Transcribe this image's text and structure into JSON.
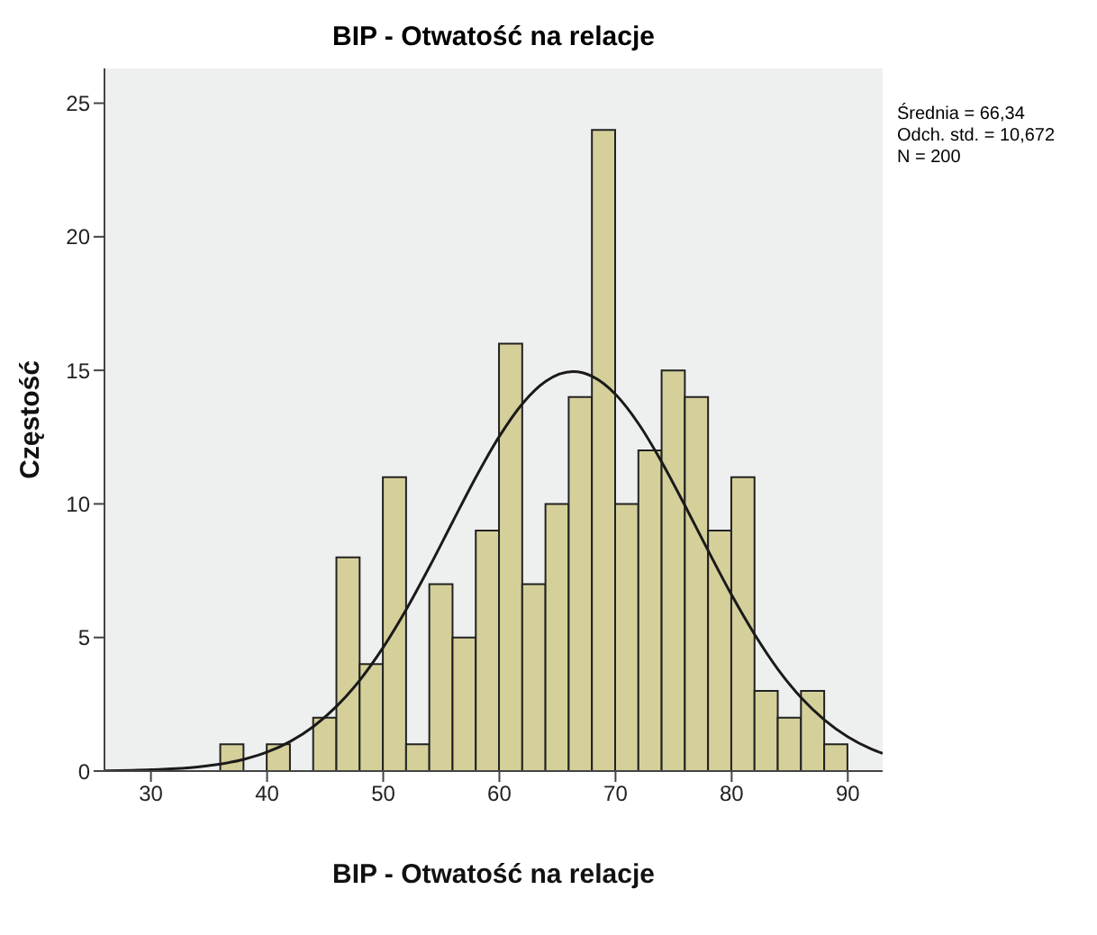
{
  "chart_data": {
    "type": "histogram",
    "title": "BIP - Otwatość na relacje",
    "xlabel": "BIP - Otwatość na relacje",
    "ylabel": "Częstość",
    "annotations": [
      "Średnia = 66,34",
      "Odch. std. = 10,672",
      "N = 200"
    ],
    "series": [
      {
        "color": "#d5d09a",
        "bins": [
          36,
          38,
          40,
          42,
          44,
          46,
          48,
          50,
          52,
          54,
          56,
          58,
          60,
          62,
          64,
          66,
          68,
          70,
          72,
          74,
          76,
          78,
          80,
          82,
          84,
          86,
          88,
          90
        ],
        "values": [
          1,
          0,
          1,
          0,
          2,
          8,
          4,
          11,
          1,
          7,
          5,
          9,
          16,
          7,
          10,
          14,
          24,
          10,
          12,
          15,
          14,
          9,
          11,
          3,
          2,
          3,
          1
        ]
      },
      {
        "type": "line",
        "color": "#1a1a1a",
        "x": [
          26,
          30,
          34,
          38,
          40,
          42,
          44,
          46,
          48,
          50,
          52,
          54,
          56,
          58,
          60,
          62,
          64,
          66.34,
          68,
          70,
          72,
          74,
          76,
          78,
          80,
          82,
          84,
          86,
          88,
          90,
          92,
          93
        ],
        "values": [
          0.01,
          0.05,
          0.15,
          0.44,
          0.71,
          1.11,
          1.67,
          2.43,
          3.41,
          4.63,
          6.06,
          7.66,
          9.35,
          11.02,
          12.53,
          13.76,
          14.59,
          14.95,
          14.77,
          14.1,
          12.99,
          11.55,
          9.92,
          8.23,
          6.59,
          5.1,
          3.8,
          2.74,
          1.91,
          1.28,
          0.83,
          0.66
        ]
      }
    ],
    "xlim": [
      26,
      93
    ],
    "xticks": [
      30,
      40,
      50,
      60,
      70,
      80,
      90
    ],
    "ylim": [
      0,
      26.3
    ],
    "yticks": [
      0,
      5,
      10,
      15,
      20,
      25
    ],
    "grid": false,
    "marker": "none",
    "line_style": "solid"
  }
}
